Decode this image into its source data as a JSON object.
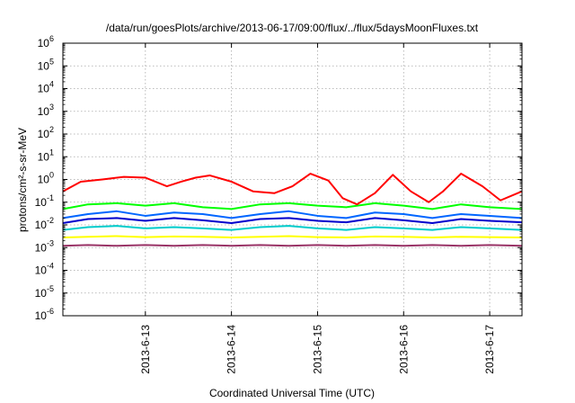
{
  "chart_data": {
    "type": "line",
    "title": "/data/run/goesPlots/archive/2013-06-17/09:00/flux/../flux/5daysMoonFluxes.txt",
    "xlabel": "Coordinated Universal Time (UTC)",
    "ylabel": "protons/cm²-s-sr-MeV",
    "yscale": "log",
    "ylim": [
      1e-06,
      1000000.0
    ],
    "xlim": [
      "2013-06-12T01:00",
      "2013-06-17T09:00"
    ],
    "grid": true,
    "y_ticks": [
      {
        "value": 1e-06,
        "base": "10",
        "exp": "-6"
      },
      {
        "value": 1e-05,
        "base": "10",
        "exp": "-5"
      },
      {
        "value": 0.0001,
        "base": "10",
        "exp": "-4"
      },
      {
        "value": 0.001,
        "base": "10",
        "exp": "-3"
      },
      {
        "value": 0.01,
        "base": "10",
        "exp": "-2"
      },
      {
        "value": 0.1,
        "base": "10",
        "exp": "-1"
      },
      {
        "value": 1.0,
        "base": "10",
        "exp": "0"
      },
      {
        "value": 10.0,
        "base": "10",
        "exp": "1"
      },
      {
        "value": 100.0,
        "base": "10",
        "exp": "2"
      },
      {
        "value": 1000.0,
        "base": "10",
        "exp": "3"
      },
      {
        "value": 10000.0,
        "base": "10",
        "exp": "4"
      },
      {
        "value": 100000.0,
        "base": "10",
        "exp": "5"
      },
      {
        "value": 1000000.0,
        "base": "10",
        "exp": "6"
      }
    ],
    "x_ticks": [
      {
        "value": "2013-06-13T00:00",
        "label": "2013-6-13"
      },
      {
        "value": "2013-06-14T00:00",
        "label": "2013-6-14"
      },
      {
        "value": "2013-06-15T00:00",
        "label": "2013-6-15"
      },
      {
        "value": "2013-06-16T00:00",
        "label": "2013-6-16"
      },
      {
        "value": "2013-06-17T00:00",
        "label": "2013-6-17"
      }
    ],
    "series": [
      {
        "color": "#ff0000",
        "x": [
          "2013-06-12T01:00",
          "2013-06-12T06:00",
          "2013-06-12T12:00",
          "2013-06-12T18:00",
          "2013-06-13T00:00",
          "2013-06-13T06:00",
          "2013-06-13T10:00",
          "2013-06-13T14:00",
          "2013-06-13T18:00",
          "2013-06-14T00:00",
          "2013-06-14T06:00",
          "2013-06-14T12:00",
          "2013-06-14T17:00",
          "2013-06-14T22:00",
          "2013-06-15T03:00",
          "2013-06-15T07:00",
          "2013-06-15T11:00",
          "2013-06-15T16:00",
          "2013-06-15T21:00",
          "2013-06-16T02:00",
          "2013-06-16T07:00",
          "2013-06-16T11:00",
          "2013-06-16T16:00",
          "2013-06-16T22:00",
          "2013-06-17T03:00",
          "2013-06-17T09:00"
        ],
        "y": [
          0.3,
          0.8,
          1.0,
          1.3,
          1.2,
          0.5,
          0.8,
          1.2,
          1.5,
          0.8,
          0.3,
          0.25,
          0.5,
          1.8,
          0.9,
          0.15,
          0.08,
          0.25,
          1.6,
          0.3,
          0.1,
          0.3,
          1.8,
          0.5,
          0.12,
          0.3
        ]
      },
      {
        "color": "#00ff00",
        "x": [
          "2013-06-12T01:00",
          "2013-06-12T08:00",
          "2013-06-12T16:00",
          "2013-06-13T00:00",
          "2013-06-13T08:00",
          "2013-06-13T16:00",
          "2013-06-14T00:00",
          "2013-06-14T08:00",
          "2013-06-14T16:00",
          "2013-06-15T00:00",
          "2013-06-15T08:00",
          "2013-06-15T16:00",
          "2013-06-16T00:00",
          "2013-06-16T08:00",
          "2013-06-16T16:00",
          "2013-06-17T00:00",
          "2013-06-17T09:00"
        ],
        "y": [
          0.05,
          0.08,
          0.09,
          0.07,
          0.09,
          0.06,
          0.05,
          0.08,
          0.09,
          0.07,
          0.06,
          0.09,
          0.07,
          0.05,
          0.08,
          0.06,
          0.05
        ]
      },
      {
        "color": "#0066ff",
        "x": [
          "2013-06-12T01:00",
          "2013-06-12T08:00",
          "2013-06-12T16:00",
          "2013-06-13T00:00",
          "2013-06-13T08:00",
          "2013-06-13T16:00",
          "2013-06-14T00:00",
          "2013-06-14T08:00",
          "2013-06-14T16:00",
          "2013-06-15T00:00",
          "2013-06-15T08:00",
          "2013-06-15T16:00",
          "2013-06-16T00:00",
          "2013-06-16T08:00",
          "2013-06-16T16:00",
          "2013-06-17T00:00",
          "2013-06-17T09:00"
        ],
        "y": [
          0.02,
          0.03,
          0.04,
          0.025,
          0.035,
          0.03,
          0.02,
          0.03,
          0.04,
          0.025,
          0.02,
          0.035,
          0.03,
          0.02,
          0.03,
          0.025,
          0.02
        ]
      },
      {
        "color": "#0000cc",
        "x": [
          "2013-06-12T01:00",
          "2013-06-12T08:00",
          "2013-06-12T16:00",
          "2013-06-13T00:00",
          "2013-06-13T08:00",
          "2013-06-13T16:00",
          "2013-06-14T00:00",
          "2013-06-14T08:00",
          "2013-06-14T16:00",
          "2013-06-15T00:00",
          "2013-06-15T08:00",
          "2013-06-15T16:00",
          "2013-06-16T00:00",
          "2013-06-16T08:00",
          "2013-06-16T16:00",
          "2013-06-17T00:00",
          "2013-06-17T09:00"
        ],
        "y": [
          0.012,
          0.018,
          0.02,
          0.015,
          0.02,
          0.016,
          0.012,
          0.018,
          0.02,
          0.015,
          0.013,
          0.02,
          0.016,
          0.012,
          0.018,
          0.015,
          0.013
        ]
      },
      {
        "color": "#00cccc",
        "x": [
          "2013-06-12T01:00",
          "2013-06-12T08:00",
          "2013-06-12T16:00",
          "2013-06-13T00:00",
          "2013-06-13T08:00",
          "2013-06-13T16:00",
          "2013-06-14T00:00",
          "2013-06-14T08:00",
          "2013-06-14T16:00",
          "2013-06-15T00:00",
          "2013-06-15T08:00",
          "2013-06-15T16:00",
          "2013-06-16T00:00",
          "2013-06-16T08:00",
          "2013-06-16T16:00",
          "2013-06-17T00:00",
          "2013-06-17T09:00"
        ],
        "y": [
          0.006,
          0.008,
          0.009,
          0.007,
          0.008,
          0.007,
          0.006,
          0.008,
          0.009,
          0.007,
          0.006,
          0.008,
          0.007,
          0.006,
          0.008,
          0.007,
          0.006
        ]
      },
      {
        "color": "#ffff00",
        "x": [
          "2013-06-12T01:00",
          "2013-06-12T08:00",
          "2013-06-12T16:00",
          "2013-06-13T00:00",
          "2013-06-13T08:00",
          "2013-06-13T16:00",
          "2013-06-14T00:00",
          "2013-06-14T08:00",
          "2013-06-14T16:00",
          "2013-06-15T00:00",
          "2013-06-15T08:00",
          "2013-06-15T16:00",
          "2013-06-16T00:00",
          "2013-06-16T08:00",
          "2013-06-16T16:00",
          "2013-06-17T00:00",
          "2013-06-17T09:00"
        ],
        "y": [
          0.0028,
          0.003,
          0.0032,
          0.0029,
          0.0031,
          0.003,
          0.0028,
          0.003,
          0.0032,
          0.0029,
          0.0028,
          0.0031,
          0.003,
          0.0028,
          0.003,
          0.0029,
          0.0028
        ]
      },
      {
        "color": "#993366",
        "x": [
          "2013-06-12T01:00",
          "2013-06-12T08:00",
          "2013-06-12T16:00",
          "2013-06-13T00:00",
          "2013-06-13T08:00",
          "2013-06-13T16:00",
          "2013-06-14T00:00",
          "2013-06-14T08:00",
          "2013-06-14T16:00",
          "2013-06-15T00:00",
          "2013-06-15T08:00",
          "2013-06-15T16:00",
          "2013-06-16T00:00",
          "2013-06-16T08:00",
          "2013-06-16T16:00",
          "2013-06-17T00:00",
          "2013-06-17T09:00"
        ],
        "y": [
          0.0012,
          0.0013,
          0.0012,
          0.0013,
          0.0012,
          0.0013,
          0.0012,
          0.0013,
          0.0012,
          0.0013,
          0.0012,
          0.0013,
          0.0012,
          0.0013,
          0.0012,
          0.0013,
          0.0012
        ]
      }
    ]
  }
}
